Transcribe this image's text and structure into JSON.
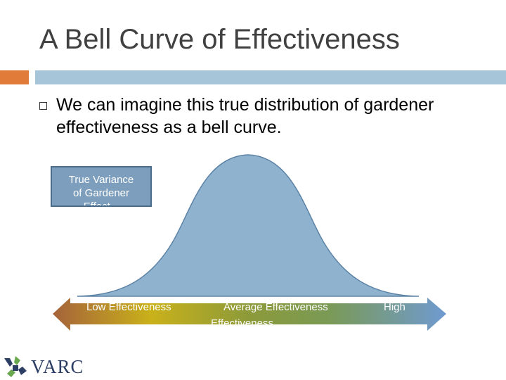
{
  "slide": {
    "title": "A Bell Curve of Effectiveness",
    "bullet": "We can imagine this true distribution of gardener effectiveness as a bell curve."
  },
  "variance_box": {
    "line1": "True Variance",
    "line2": "of Gardener",
    "line3": "Effect..."
  },
  "axis": {
    "low_label": "Low Effectiveness",
    "avg_label": "Average Effectiveness",
    "avg_overflow": "Effectiveness",
    "high_label": "High"
  },
  "logo": {
    "text": "VARC"
  },
  "colors": {
    "accent": "#e07b39",
    "rule": "#a6c5d8",
    "curve_fill": "#8fb2cf",
    "curve_stroke": "#5c83a6"
  }
}
